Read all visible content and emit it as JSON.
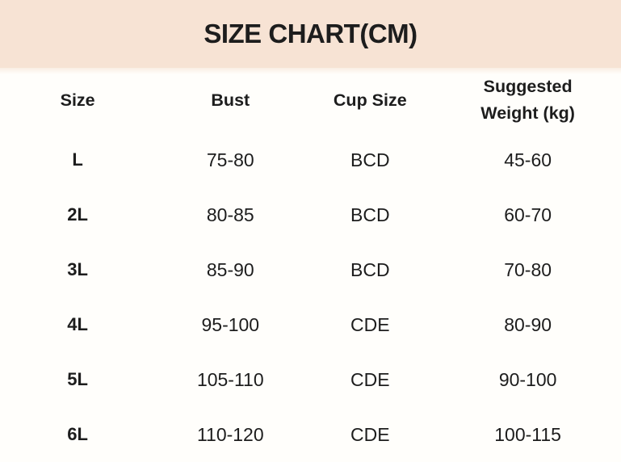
{
  "title": "SIZE CHART(CM)",
  "colors": {
    "header_background": "#f7e3d4",
    "body_background": "#fffefb",
    "text": "#1d1d1d"
  },
  "chart_data": {
    "type": "table",
    "title": "SIZE CHART(CM)",
    "columns": [
      "Size",
      "Bust",
      "Cup Size",
      "Suggested Weight (kg)"
    ],
    "rows": [
      [
        "L",
        "75-80",
        "BCD",
        "45-60"
      ],
      [
        "2L",
        "80-85",
        "BCD",
        "60-70"
      ],
      [
        "3L",
        "85-90",
        "BCD",
        "70-80"
      ],
      [
        "4L",
        "95-100",
        "CDE",
        "80-90"
      ],
      [
        "5L",
        "105-110",
        "CDE",
        "90-100"
      ],
      [
        "6L",
        "110-120",
        "CDE",
        "100-115"
      ]
    ]
  }
}
